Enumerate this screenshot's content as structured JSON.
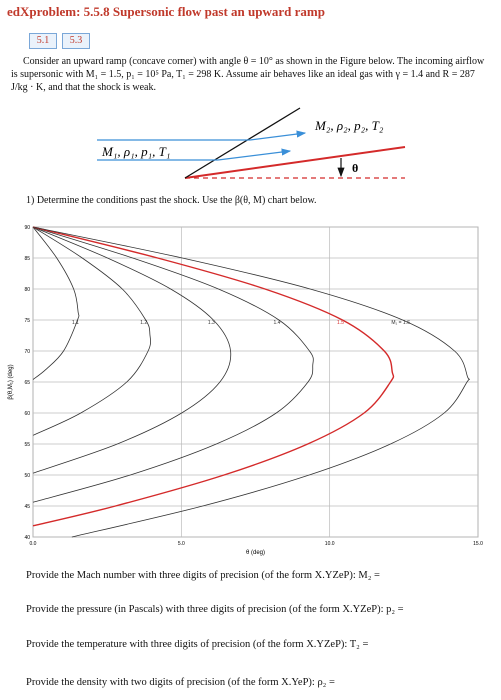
{
  "header": {
    "title": "edXproblem: 5.5.8 Supersonic flow past an upward ramp"
  },
  "tabs": [
    "5.1",
    "5.3"
  ],
  "intro": "Consider an upward ramp (concave corner) with angle θ = 10° as shown in the Figure below. The incoming airflow is supersonic with M₁ = 1.5, p₁ = 10⁵ Pa, T₁ = 298 K. Assume air behaves like an ideal gas with γ = 1.4 and R = 287 J/kg · K, and that the shock is weak.",
  "figure": {
    "upstream_label": "M₁, ρ₁, p₁, T₁",
    "downstream_label": "M₂, ρ₂, p₂, T₂",
    "angle_label": "θ"
  },
  "question": "1) Determine the conditions past the shock. Use the β(θ, M) chart below.",
  "chart_data": {
    "type": "line",
    "x_label": "θ (deg)",
    "y_label": "β(θ,M₁) (deg)",
    "xlim": [
      0,
      15
    ],
    "ylim": [
      40,
      90
    ],
    "xticks": [
      {
        "value": 0,
        "label": "0.0"
      },
      {
        "value": 5,
        "label": "5.0"
      },
      {
        "value": 10,
        "label": "10.0"
      },
      {
        "value": 15,
        "label": "15.0"
      }
    ],
    "yticks": [
      40,
      45,
      50,
      55,
      60,
      65,
      70,
      75,
      80,
      85,
      90
    ],
    "grid": true,
    "series": [
      {
        "name": "1.1",
        "color": "#333333",
        "x": [
          0,
          0.8,
          1.37,
          1.52,
          1.5,
          1.03,
          0.43,
          0
        ],
        "values": [
          90,
          85,
          80,
          76.3,
          75,
          70,
          67,
          65.4
        ]
      },
      {
        "name": "1.2",
        "color": "#333333",
        "x": [
          0,
          1.66,
          3.01,
          3.8,
          3.94,
          3.88,
          3.16,
          1.61,
          0
        ],
        "values": [
          90,
          85,
          80,
          75,
          72.7,
          70,
          65,
          60,
          56.4
        ]
      },
      {
        "name": "1.3",
        "color": "#333333",
        "x": [
          0,
          2.51,
          4.64,
          6.08,
          6.66,
          6.3,
          5.01,
          2.84,
          0
        ],
        "values": [
          90,
          85,
          80,
          75,
          70,
          65,
          60,
          55,
          50.3
        ]
      },
      {
        "name": "1.4",
        "color": "#333333",
        "x": [
          0,
          3.36,
          6.25,
          8.29,
          9.32,
          9.43,
          9.27,
          8.2,
          6.18,
          3.28,
          0
        ],
        "values": [
          90,
          85,
          80,
          75,
          70,
          67.7,
          65,
          60,
          55,
          50,
          45.6
        ]
      },
      {
        "name": "1.5",
        "color": "#d42a2a",
        "x": [
          0,
          4.2,
          7.82,
          10.43,
          11.84,
          12.11,
          12.05,
          11.16,
          9.26,
          6.44,
          2.78,
          0
        ],
        "values": [
          90,
          85,
          80,
          75,
          70,
          66.6,
          65,
          60,
          55,
          50,
          45,
          41.8
        ]
      },
      {
        "name": "M₁ = 1.6",
        "color": "#333333",
        "x": [
          0,
          5.03,
          9.34,
          12.46,
          14.21,
          14.65,
          14.63,
          13.86,
          12.05,
          9.31,
          5.72,
          1.31
        ],
        "values": [
          90,
          85,
          80,
          75,
          70,
          65.8,
          65,
          60,
          55,
          50,
          45,
          40
        ]
      }
    ]
  },
  "prompts": [
    "Provide the Mach number with three digits of precision (of the form X.YZeP): M₂ =",
    "Provide the pressure (in Pascals) with three digits of precision (of the form X.YZeP): p₂ =",
    "Provide the temperature with three digits of precision (of the form X.YZeP): T₂ =",
    "Provide the density with two digits of precision (of the form X.YeP): ρ₂ ="
  ]
}
